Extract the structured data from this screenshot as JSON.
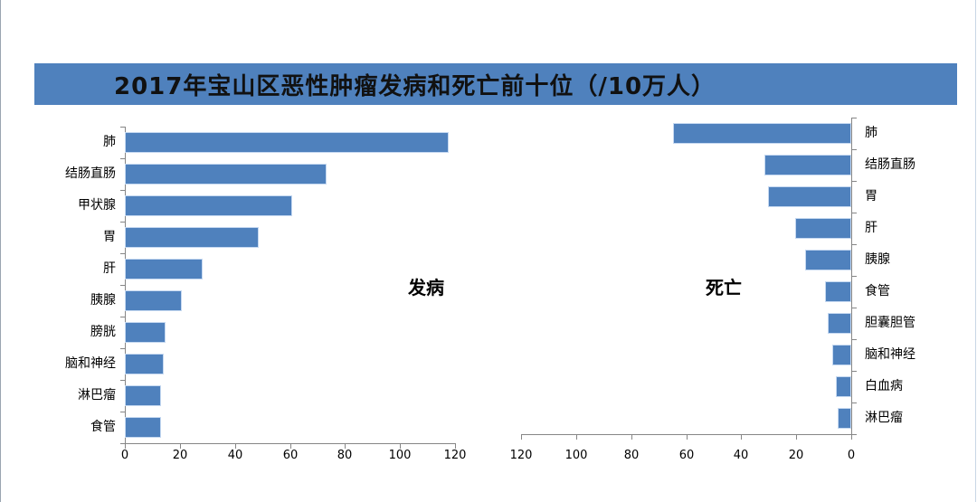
{
  "title": "2017年宝山区恶性肿瘤发病和死亡前十位（/10万人）",
  "colors": {
    "bar": "#4f81bd",
    "title_bar": "#4f81bd",
    "axis": "#868686"
  },
  "incidence": {
    "label": "发病",
    "categories": [
      "肺",
      "结肠直肠",
      "甲状腺",
      "胃",
      "肝",
      "胰腺",
      "膀胱",
      "脑和神经",
      "淋巴瘤",
      "食管"
    ],
    "values": [
      117.6,
      73.3,
      60.9,
      48.7,
      28.3,
      20.7,
      14.8,
      14.1,
      13.2,
      13.2
    ],
    "ticks": [
      "0",
      "20",
      "40",
      "60",
      "80",
      "100",
      "120"
    ]
  },
  "mortality": {
    "label": "死亡",
    "categories": [
      "肺",
      "结肠直肠",
      "胃",
      "肝",
      "胰腺",
      "食管",
      "胆囊胆管",
      "脑和神经",
      "白血病",
      "淋巴瘤"
    ],
    "values": [
      64.8,
      31.6,
      30.3,
      20.4,
      16.8,
      9.5,
      8.6,
      6.9,
      5.6,
      4.9
    ],
    "ticks": [
      "120",
      "100",
      "80",
      "60",
      "40",
      "20",
      "0"
    ]
  },
  "chart_data": [
    {
      "type": "bar",
      "orientation": "horizontal",
      "title": "2017年宝山区恶性肿瘤发病和死亡前十位（/10万人）",
      "subtitle": "发病",
      "categories": [
        "肺",
        "结肠直肠",
        "甲状腺",
        "胃",
        "肝",
        "胰腺",
        "膀胱",
        "脑和神经",
        "淋巴瘤",
        "食管"
      ],
      "values": [
        117.6,
        73.3,
        60.9,
        48.7,
        28.3,
        20.7,
        14.8,
        14.1,
        13.2,
        13.2
      ],
      "xlabel": "",
      "ylabel": "",
      "xlim": [
        0,
        120
      ],
      "xticks": [
        0,
        20,
        40,
        60,
        80,
        100,
        120
      ],
      "grid": false,
      "legend": "none"
    },
    {
      "type": "bar",
      "orientation": "horizontal",
      "reversed_x": true,
      "title": "2017年宝山区恶性肿瘤发病和死亡前十位（/10万人）",
      "subtitle": "死亡",
      "categories": [
        "肺",
        "结肠直肠",
        "胃",
        "肝",
        "胰腺",
        "食管",
        "胆囊胆管",
        "脑和神经",
        "白血病",
        "淋巴瘤"
      ],
      "values": [
        64.8,
        31.6,
        30.3,
        20.4,
        16.8,
        9.5,
        8.6,
        6.9,
        5.6,
        4.9
      ],
      "xlabel": "",
      "ylabel": "",
      "xlim": [
        120,
        0
      ],
      "xticks": [
        120,
        100,
        80,
        60,
        40,
        20,
        0
      ],
      "grid": false,
      "legend": "none"
    }
  ]
}
